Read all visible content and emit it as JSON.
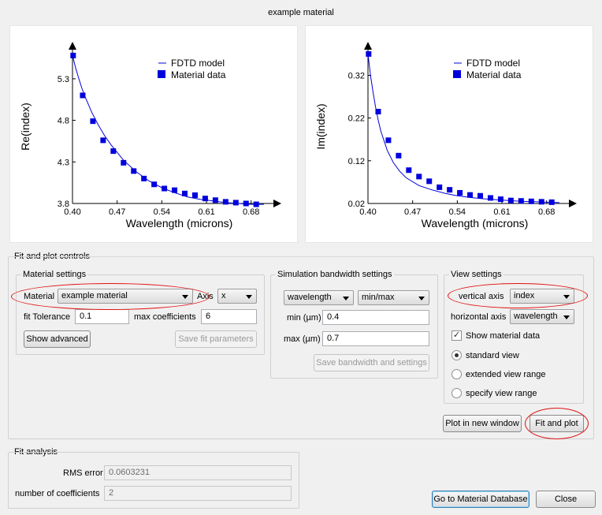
{
  "window": {
    "title": "example material"
  },
  "plots": [
    {
      "chart_data": {
        "type": "line",
        "xlabel": "Wavelength (microns)",
        "ylabel": "Re(index)",
        "xlim": [
          0.4,
          0.71
        ],
        "ylim": [
          3.8,
          5.65
        ],
        "xticks": [
          "0.40",
          "0.47",
          "0.54",
          "0.61",
          "0.68"
        ],
        "xtick_values": [
          0.4,
          0.47,
          0.54,
          0.61,
          0.68
        ],
        "yticks": [
          "3.8",
          "4.3",
          "4.8",
          "5.3"
        ],
        "ytick_values": [
          3.8,
          4.3,
          4.8,
          5.3
        ],
        "legend": [
          "FDTD model",
          "Material data"
        ],
        "legend_position": "top-right",
        "series": [
          {
            "name": "FDTD model",
            "style": "line",
            "x": [
              0.4,
              0.405,
              0.41,
              0.415,
              0.42,
              0.43,
              0.44,
              0.45,
              0.46,
              0.48,
              0.5,
              0.52,
              0.54,
              0.56,
              0.58,
              0.6,
              0.62,
              0.64,
              0.66,
              0.68,
              0.7
            ],
            "y": [
              5.58,
              5.43,
              5.3,
              5.18,
              5.08,
              4.9,
              4.75,
              4.62,
              4.51,
              4.32,
              4.18,
              4.07,
              3.99,
              3.93,
              3.88,
              3.85,
              3.83,
              3.81,
              3.8,
              3.79,
              3.79
            ]
          },
          {
            "name": "Material data",
            "style": "marker",
            "x": [
              0.401,
              0.416,
              0.432,
              0.448,
              0.464,
              0.48,
              0.496,
              0.512,
              0.528,
              0.544,
              0.56,
              0.576,
              0.592,
              0.608,
              0.624,
              0.64,
              0.656,
              0.672,
              0.688
            ],
            "y": [
              5.58,
              5.1,
              4.79,
              4.56,
              4.43,
              4.29,
              4.19,
              4.1,
              4.03,
              3.98,
              3.96,
              3.92,
              3.9,
              3.86,
              3.84,
              3.82,
              3.81,
              3.8,
              3.79
            ]
          }
        ]
      }
    },
    {
      "chart_data": {
        "type": "line",
        "xlabel": "Wavelength (microns)",
        "ylabel": "Im(index)",
        "xlim": [
          0.4,
          0.71
        ],
        "ylim": [
          0.02,
          0.38
        ],
        "xticks": [
          "0.40",
          "0.47",
          "0.54",
          "0.61",
          "0.68"
        ],
        "xtick_values": [
          0.4,
          0.47,
          0.54,
          0.61,
          0.68
        ],
        "yticks": [
          "0.02",
          "0.12",
          "0.22",
          "0.32"
        ],
        "ytick_values": [
          0.02,
          0.12,
          0.22,
          0.32
        ],
        "legend": [
          "FDTD model",
          "Material data"
        ],
        "legend_position": "top-right",
        "series": [
          {
            "name": "FDTD model",
            "style": "line",
            "x": [
              0.4,
              0.404,
              0.408,
              0.412,
              0.416,
              0.42,
              0.43,
              0.44,
              0.45,
              0.46,
              0.48,
              0.5,
              0.52,
              0.54,
              0.56,
              0.58,
              0.6,
              0.62,
              0.64,
              0.66,
              0.68,
              0.7
            ],
            "y": [
              0.37,
              0.32,
              0.28,
              0.245,
              0.215,
              0.19,
              0.145,
              0.115,
              0.095,
              0.08,
              0.062,
              0.052,
              0.044,
              0.038,
              0.034,
              0.031,
              0.029,
              0.027,
              0.025,
              0.024,
              0.023,
              0.022
            ]
          },
          {
            "name": "Material data",
            "style": "marker",
            "x": [
              0.401,
              0.416,
              0.432,
              0.448,
              0.464,
              0.48,
              0.496,
              0.512,
              0.528,
              0.544,
              0.56,
              0.576,
              0.592,
              0.608,
              0.624,
              0.64,
              0.656,
              0.672,
              0.688
            ],
            "y": [
              0.37,
              0.235,
              0.168,
              0.132,
              0.098,
              0.083,
              0.072,
              0.058,
              0.052,
              0.045,
              0.04,
              0.038,
              0.033,
              0.03,
              0.027,
              0.026,
              0.025,
              0.024,
              0.023
            ]
          }
        ]
      }
    }
  ],
  "fit_controls": {
    "title": "Fit and plot controls",
    "material_settings": {
      "title": "Material settings",
      "material_label": "Material",
      "material_value": "example material",
      "axis_label": "Axis",
      "axis_value": "x",
      "fit_tolerance_label": "fit Tolerance",
      "fit_tolerance_value": "0.1",
      "max_coeff_label": "max coefficients",
      "max_coeff_value": "6",
      "show_advanced": "Show advanced",
      "save_fit": "Save fit parameters"
    },
    "sim_bandwidth": {
      "title": "Simulation bandwidth settings",
      "mode_value": "wavelength",
      "range_value": "min/max",
      "min_label": "min (µm)",
      "min_value": "0.4",
      "max_label": "max (µm)",
      "max_value": "0.7",
      "save_button": "Save bandwidth and settings"
    },
    "view_settings": {
      "title": "View settings",
      "vertical_label": "vertical axis",
      "vertical_value": "index",
      "horizontal_label": "horizontal axis",
      "horizontal_value": "wavelength",
      "show_material_label": "Show material data",
      "show_material_checked": true,
      "radios": [
        "standard view",
        "extended view range",
        "specify view range"
      ],
      "selected_radio": 0
    },
    "plot_new_window": "Plot in new window",
    "fit_and_plot": "Fit and plot"
  },
  "fit_analysis": {
    "title": "Fit analysis",
    "rms_label": "RMS error",
    "rms_value": "0.0603231",
    "num_coeff_label": "number of coefficients",
    "num_coeff_value": "2"
  },
  "footer": {
    "goto_db": "Go to Material Database",
    "close": "Close"
  },
  "colors": {
    "plot_blue": "#0000dd",
    "highlight_red": "#e01010"
  }
}
